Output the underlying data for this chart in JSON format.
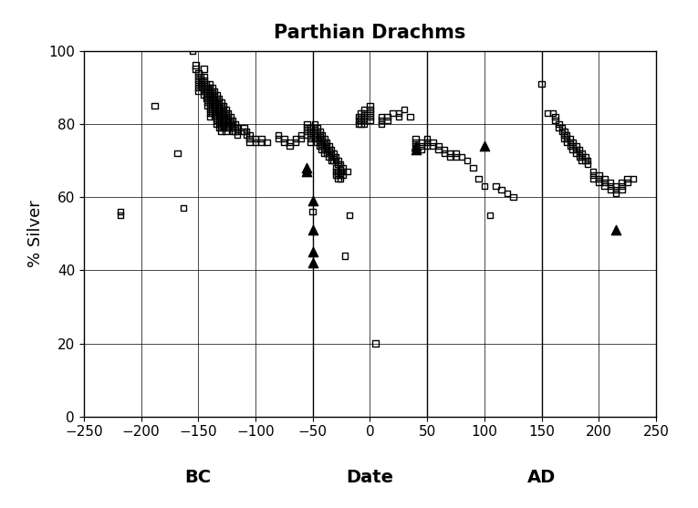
{
  "title": "Parthian Drachms",
  "ylabel": "% Silver",
  "xlim": [
    -250,
    250
  ],
  "ylim": [
    0,
    100
  ],
  "xticks": [
    -250,
    -200,
    -150,
    -100,
    -50,
    0,
    50,
    100,
    150,
    200,
    250
  ],
  "yticks": [
    0,
    20,
    40,
    60,
    80,
    100
  ],
  "vlines": [
    -50,
    50,
    150
  ],
  "bc_label": "BC",
  "date_label": "Date",
  "ad_label": "AD",
  "squares": [
    [
      -218,
      56
    ],
    [
      -218,
      55
    ],
    [
      -188,
      85
    ],
    [
      -168,
      72
    ],
    [
      -163,
      57
    ],
    [
      -155,
      100
    ],
    [
      -152,
      96
    ],
    [
      -152,
      95
    ],
    [
      -150,
      94
    ],
    [
      -150,
      93
    ],
    [
      -150,
      92
    ],
    [
      -150,
      91
    ],
    [
      -150,
      90
    ],
    [
      -150,
      89
    ],
    [
      -148,
      93
    ],
    [
      -148,
      91
    ],
    [
      -147,
      92
    ],
    [
      -147,
      91
    ],
    [
      -147,
      90
    ],
    [
      -145,
      95
    ],
    [
      -145,
      93
    ],
    [
      -145,
      92
    ],
    [
      -145,
      91
    ],
    [
      -145,
      90
    ],
    [
      -145,
      89
    ],
    [
      -145,
      88
    ],
    [
      -143,
      91
    ],
    [
      -143,
      90
    ],
    [
      -143,
      89
    ],
    [
      -143,
      88
    ],
    [
      -143,
      87
    ],
    [
      -142,
      90
    ],
    [
      -142,
      89
    ],
    [
      -142,
      88
    ],
    [
      -142,
      87
    ],
    [
      -142,
      86
    ],
    [
      -142,
      85
    ],
    [
      -140,
      91
    ],
    [
      -140,
      90
    ],
    [
      -140,
      89
    ],
    [
      -140,
      88
    ],
    [
      -140,
      87
    ],
    [
      -140,
      86
    ],
    [
      -140,
      85
    ],
    [
      -140,
      84
    ],
    [
      -140,
      83
    ],
    [
      -140,
      82
    ],
    [
      -138,
      90
    ],
    [
      -138,
      89
    ],
    [
      -138,
      88
    ],
    [
      -138,
      87
    ],
    [
      -138,
      86
    ],
    [
      -138,
      85
    ],
    [
      -138,
      84
    ],
    [
      -138,
      83
    ],
    [
      -136,
      89
    ],
    [
      -136,
      88
    ],
    [
      -136,
      87
    ],
    [
      -136,
      86
    ],
    [
      -136,
      85
    ],
    [
      -136,
      84
    ],
    [
      -136,
      83
    ],
    [
      -136,
      82
    ],
    [
      -134,
      88
    ],
    [
      -134,
      87
    ],
    [
      -134,
      86
    ],
    [
      -134,
      85
    ],
    [
      -134,
      84
    ],
    [
      -134,
      83
    ],
    [
      -134,
      82
    ],
    [
      -134,
      81
    ],
    [
      -134,
      80
    ],
    [
      -132,
      87
    ],
    [
      -132,
      86
    ],
    [
      -132,
      85
    ],
    [
      -132,
      84
    ],
    [
      -132,
      83
    ],
    [
      -132,
      82
    ],
    [
      -132,
      81
    ],
    [
      -132,
      80
    ],
    [
      -132,
      79
    ],
    [
      -130,
      86
    ],
    [
      -130,
      85
    ],
    [
      -130,
      84
    ],
    [
      -130,
      83
    ],
    [
      -130,
      82
    ],
    [
      -130,
      81
    ],
    [
      -130,
      80
    ],
    [
      -130,
      79
    ],
    [
      -130,
      78
    ],
    [
      -128,
      85
    ],
    [
      -128,
      84
    ],
    [
      -128,
      83
    ],
    [
      -128,
      82
    ],
    [
      -128,
      81
    ],
    [
      -128,
      80
    ],
    [
      -128,
      79
    ],
    [
      -126,
      84
    ],
    [
      -126,
      83
    ],
    [
      -126,
      82
    ],
    [
      -126,
      81
    ],
    [
      -126,
      80
    ],
    [
      -126,
      79
    ],
    [
      -126,
      78
    ],
    [
      -124,
      83
    ],
    [
      -124,
      82
    ],
    [
      -124,
      81
    ],
    [
      -124,
      80
    ],
    [
      -124,
      79
    ],
    [
      -122,
      82
    ],
    [
      -122,
      81
    ],
    [
      -122,
      80
    ],
    [
      -120,
      81
    ],
    [
      -120,
      80
    ],
    [
      -120,
      79
    ],
    [
      -120,
      78
    ],
    [
      -118,
      80
    ],
    [
      -118,
      79
    ],
    [
      -118,
      78
    ],
    [
      -116,
      79
    ],
    [
      -116,
      78
    ],
    [
      -116,
      77
    ],
    [
      -110,
      79
    ],
    [
      -110,
      78
    ],
    [
      -108,
      78
    ],
    [
      -108,
      77
    ],
    [
      -105,
      77
    ],
    [
      -105,
      76
    ],
    [
      -105,
      75
    ],
    [
      -100,
      76
    ],
    [
      -100,
      75
    ],
    [
      -95,
      76
    ],
    [
      -95,
      75
    ],
    [
      -90,
      75
    ],
    [
      -80,
      77
    ],
    [
      -80,
      76
    ],
    [
      -75,
      76
    ],
    [
      -75,
      75
    ],
    [
      -70,
      75
    ],
    [
      -70,
      74
    ],
    [
      -65,
      76
    ],
    [
      -65,
      75
    ],
    [
      -60,
      77
    ],
    [
      -60,
      76
    ],
    [
      -55,
      80
    ],
    [
      -55,
      79
    ],
    [
      -55,
      78
    ],
    [
      -55,
      77
    ],
    [
      -52,
      79
    ],
    [
      -52,
      78
    ],
    [
      -52,
      77
    ],
    [
      -52,
      76
    ],
    [
      -52,
      75
    ],
    [
      -50,
      56
    ],
    [
      -48,
      80
    ],
    [
      -48,
      79
    ],
    [
      -48,
      78
    ],
    [
      -48,
      77
    ],
    [
      -48,
      76
    ],
    [
      -46,
      79
    ],
    [
      -46,
      78
    ],
    [
      -46,
      77
    ],
    [
      -46,
      76
    ],
    [
      -46,
      75
    ],
    [
      -44,
      78
    ],
    [
      -44,
      77
    ],
    [
      -44,
      76
    ],
    [
      -44,
      75
    ],
    [
      -44,
      74
    ],
    [
      -42,
      77
    ],
    [
      -42,
      76
    ],
    [
      -42,
      75
    ],
    [
      -42,
      74
    ],
    [
      -42,
      73
    ],
    [
      -40,
      76
    ],
    [
      -40,
      75
    ],
    [
      -40,
      74
    ],
    [
      -40,
      73
    ],
    [
      -40,
      72
    ],
    [
      -38,
      75
    ],
    [
      -38,
      74
    ],
    [
      -38,
      73
    ],
    [
      -38,
      72
    ],
    [
      -36,
      74
    ],
    [
      -36,
      73
    ],
    [
      -36,
      72
    ],
    [
      -36,
      71
    ],
    [
      -34,
      73
    ],
    [
      -34,
      72
    ],
    [
      -34,
      71
    ],
    [
      -34,
      70
    ],
    [
      -32,
      72
    ],
    [
      -32,
      71
    ],
    [
      -32,
      70
    ],
    [
      -30,
      71
    ],
    [
      -30,
      70
    ],
    [
      -30,
      68
    ],
    [
      -30,
      67
    ],
    [
      -30,
      66
    ],
    [
      -28,
      70
    ],
    [
      -28,
      69
    ],
    [
      -28,
      67
    ],
    [
      -28,
      66
    ],
    [
      -28,
      65
    ],
    [
      -26,
      69
    ],
    [
      -26,
      68
    ],
    [
      -26,
      67
    ],
    [
      -26,
      66
    ],
    [
      -26,
      65
    ],
    [
      -24,
      68
    ],
    [
      -24,
      67
    ],
    [
      -24,
      66
    ],
    [
      -22,
      44
    ],
    [
      -20,
      67
    ],
    [
      -18,
      55
    ],
    [
      -10,
      82
    ],
    [
      -10,
      81
    ],
    [
      -10,
      80
    ],
    [
      -8,
      83
    ],
    [
      -8,
      82
    ],
    [
      -8,
      81
    ],
    [
      -8,
      80
    ],
    [
      -5,
      84
    ],
    [
      -5,
      83
    ],
    [
      -5,
      82
    ],
    [
      -5,
      81
    ],
    [
      -5,
      80
    ],
    [
      0,
      85
    ],
    [
      0,
      84
    ],
    [
      0,
      83
    ],
    [
      0,
      82
    ],
    [
      0,
      81
    ],
    [
      5,
      20
    ],
    [
      10,
      82
    ],
    [
      10,
      81
    ],
    [
      10,
      80
    ],
    [
      15,
      82
    ],
    [
      15,
      81
    ],
    [
      20,
      83
    ],
    [
      25,
      83
    ],
    [
      25,
      82
    ],
    [
      30,
      84
    ],
    [
      35,
      82
    ],
    [
      40,
      76
    ],
    [
      40,
      75
    ],
    [
      40,
      74
    ],
    [
      40,
      73
    ],
    [
      45,
      75
    ],
    [
      45,
      74
    ],
    [
      45,
      73
    ],
    [
      50,
      76
    ],
    [
      50,
      75
    ],
    [
      50,
      74
    ],
    [
      55,
      75
    ],
    [
      55,
      74
    ],
    [
      60,
      74
    ],
    [
      60,
      73
    ],
    [
      65,
      73
    ],
    [
      65,
      72
    ],
    [
      70,
      72
    ],
    [
      70,
      71
    ],
    [
      75,
      72
    ],
    [
      75,
      71
    ],
    [
      80,
      71
    ],
    [
      85,
      70
    ],
    [
      90,
      68
    ],
    [
      95,
      65
    ],
    [
      100,
      63
    ],
    [
      105,
      55
    ],
    [
      110,
      63
    ],
    [
      115,
      62
    ],
    [
      120,
      61
    ],
    [
      125,
      60
    ],
    [
      150,
      91
    ],
    [
      155,
      83
    ],
    [
      160,
      83
    ],
    [
      162,
      82
    ],
    [
      162,
      81
    ],
    [
      165,
      80
    ],
    [
      165,
      79
    ],
    [
      168,
      79
    ],
    [
      168,
      78
    ],
    [
      170,
      78
    ],
    [
      170,
      77
    ],
    [
      170,
      76
    ],
    [
      172,
      77
    ],
    [
      172,
      76
    ],
    [
      172,
      75
    ],
    [
      175,
      76
    ],
    [
      175,
      75
    ],
    [
      175,
      74
    ],
    [
      177,
      75
    ],
    [
      177,
      74
    ],
    [
      177,
      73
    ],
    [
      180,
      74
    ],
    [
      180,
      73
    ],
    [
      180,
      72
    ],
    [
      183,
      73
    ],
    [
      183,
      72
    ],
    [
      183,
      71
    ],
    [
      185,
      72
    ],
    [
      185,
      71
    ],
    [
      185,
      70
    ],
    [
      188,
      71
    ],
    [
      188,
      70
    ],
    [
      190,
      70
    ],
    [
      190,
      69
    ],
    [
      195,
      67
    ],
    [
      195,
      66
    ],
    [
      195,
      65
    ],
    [
      200,
      66
    ],
    [
      200,
      65
    ],
    [
      200,
      64
    ],
    [
      205,
      65
    ],
    [
      205,
      64
    ],
    [
      205,
      63
    ],
    [
      210,
      64
    ],
    [
      210,
      63
    ],
    [
      210,
      62
    ],
    [
      215,
      63
    ],
    [
      215,
      62
    ],
    [
      215,
      61
    ],
    [
      220,
      64
    ],
    [
      220,
      63
    ],
    [
      220,
      62
    ],
    [
      225,
      65
    ],
    [
      225,
      64
    ],
    [
      230,
      65
    ]
  ],
  "triangles": [
    [
      -55,
      68
    ],
    [
      -55,
      67
    ],
    [
      -50,
      59
    ],
    [
      -50,
      51
    ],
    [
      -50,
      45
    ],
    [
      -50,
      42
    ],
    [
      40,
      74
    ],
    [
      40,
      73
    ],
    [
      100,
      74
    ],
    [
      215,
      51
    ]
  ],
  "background_color": "#ffffff",
  "border_color": "#000000",
  "title_fontsize": 15,
  "label_fontsize": 13,
  "tick_fontsize": 11,
  "annotation_fontsize": 14
}
